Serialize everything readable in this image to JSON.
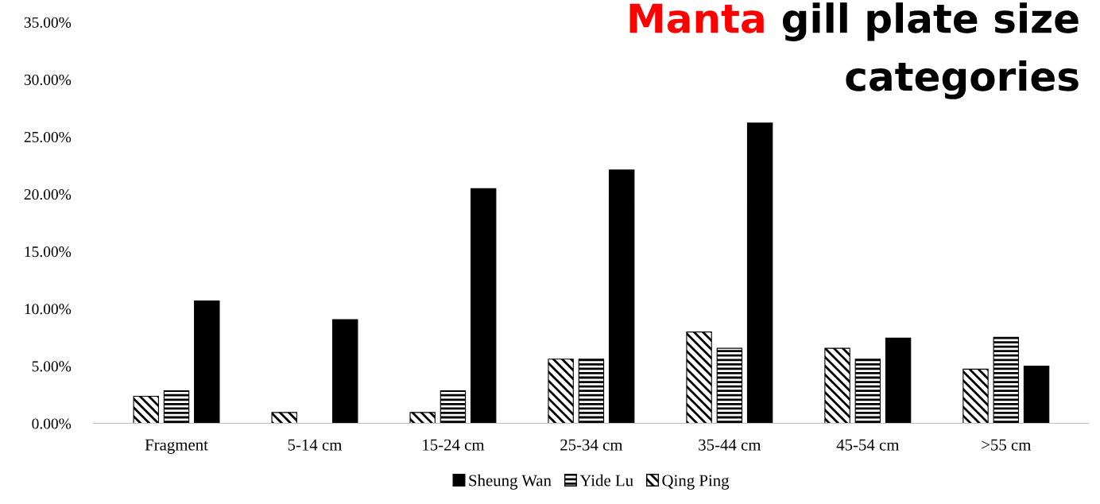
{
  "chart_data": {
    "type": "bar",
    "title": "Manta gill plate size\ncategories",
    "categories": [
      "Fragment",
      "5-14 cm",
      "15-24 cm",
      "25-34 cm",
      "35-44 cm",
      "45-54 cm",
      ">55 cm"
    ],
    "series": [
      {
        "name": "Qing Ping",
        "color": "#000000",
        "values": [
          2.36,
          0.95,
          0.95,
          5.6,
          7.97,
          6.55,
          4.73
        ]
      },
      {
        "name": "Yide Lu",
        "color": "#000000",
        "values": [
          2.84,
          0,
          2.84,
          5.6,
          6.55,
          5.6,
          7.5
        ]
      },
      {
        "name": "Sheung Wan",
        "color": "#000000",
        "values": [
          10.68,
          9.05,
          20.47,
          22.1,
          26.2,
          7.43,
          5.0
        ]
      }
    ],
    "ylim": [
      0,
      35
    ],
    "yticks": [
      {
        "value": 0,
        "label": "0.00%"
      },
      {
        "value": 5,
        "label": "5.00%"
      },
      {
        "value": 10,
        "label": "10.00%"
      },
      {
        "value": 15,
        "label": "15.00%"
      },
      {
        "value": 20,
        "label": "20.00%"
      },
      {
        "value": 25,
        "label": "25.00%"
      },
      {
        "value": 30,
        "label": "30.00%"
      },
      {
        "value": 35,
        "label": "35.00%"
      }
    ],
    "grid": false,
    "legend": "bottom"
  }
}
